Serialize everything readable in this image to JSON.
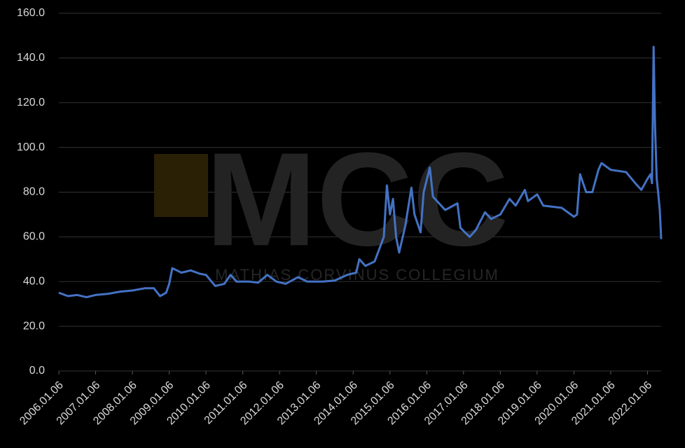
{
  "chart_data": {
    "type": "line",
    "watermark": {
      "logo": "MCC",
      "text": "MATHIAS CORVINUS COLLEGIUM"
    },
    "x": [
      "2006.01.06",
      "2006.04.06",
      "2006.07.06",
      "2006.10.06",
      "2007.01.06",
      "2007.05.06",
      "2007.09.06",
      "2008.01.06",
      "2008.05.06",
      "2008.08.06",
      "2008.10.06",
      "2008.12.06",
      "2009.01.06",
      "2009.02.06",
      "2009.05.06",
      "2009.08.06",
      "2009.11.06",
      "2010.01.06",
      "2010.04.06",
      "2010.07.06",
      "2010.09.06",
      "2010.11.06",
      "2011.03.06",
      "2011.06.06",
      "2011.09.06",
      "2011.12.06",
      "2012.03.06",
      "2012.07.06",
      "2012.10.06",
      "2013.03.06",
      "2013.07.06",
      "2013.11.06",
      "2014.02.06",
      "2014.03.06",
      "2014.05.06",
      "2014.08.06",
      "2014.11.06",
      "2014.12.06",
      "2015.01.06",
      "2015.02.06",
      "2015.03.06",
      "2015.04.06",
      "2015.06.06",
      "2015.08.06",
      "2015.09.06",
      "2015.11.06",
      "2015.12.06",
      "2016.02.06",
      "2016.03.06",
      "2016.07.06",
      "2016.11.06",
      "2016.12.06",
      "2017.03.06",
      "2017.05.06",
      "2017.08.06",
      "2017.10.06",
      "2018.01.06",
      "2018.04.06",
      "2018.06.06",
      "2018.09.06",
      "2018.10.06",
      "2019.01.06",
      "2019.03.06",
      "2019.09.06",
      "2020.01.06",
      "2020.02.06",
      "2020.03.06",
      "2020.05.06",
      "2020.07.06",
      "2020.09.06",
      "2020.10.06",
      "2021.01.06",
      "2021.06.06",
      "2021.09.06",
      "2021.11.06",
      "2022.01.06",
      "2022.02.06",
      "2022.02.20",
      "2022.03.06",
      "2022.03.20",
      "2022.04.06",
      "2022.04.20",
      "2022.05.06",
      "2022.05.20"
    ],
    "series": [
      {
        "color": "#4472c4",
        "values": [
          35,
          33.5,
          34,
          33,
          34,
          34.5,
          35.5,
          36,
          37,
          37,
          33.5,
          35,
          39,
          46,
          44,
          45,
          43.5,
          43,
          38,
          39,
          43,
          40,
          40,
          39.5,
          43,
          40,
          39,
          42,
          40,
          40,
          40.5,
          43,
          44,
          50,
          47,
          49,
          60,
          83,
          70,
          77,
          60,
          53,
          65,
          82,
          70,
          62,
          80,
          91,
          78,
          72,
          75,
          64,
          60,
          63,
          71,
          68,
          70,
          77,
          74,
          81,
          76,
          79,
          74,
          73,
          69,
          70,
          88,
          80,
          80,
          90,
          93,
          90,
          89,
          84,
          81,
          86,
          88,
          84,
          145,
          110,
          86,
          80,
          72,
          59
        ]
      }
    ],
    "xlim": [
      "2006.01.06",
      "2022.05.20"
    ],
    "xticks": [
      "2006.01.06",
      "2007.01.06",
      "2008.01.06",
      "2009.01.06",
      "2010.01.06",
      "2011.01.06",
      "2012.01.06",
      "2013.01.06",
      "2014.01.06",
      "2015.01.06",
      "2016.01.06",
      "2017.01.06",
      "2018.01.06",
      "2019.01.06",
      "2020.01.06",
      "2021.01.06",
      "2022.01.06"
    ],
    "ylim": [
      0,
      160
    ],
    "yticks": [
      {
        "value": 0,
        "label": "0.0"
      },
      {
        "value": 20,
        "label": "20.0"
      },
      {
        "value": 40,
        "label": "40.0"
      },
      {
        "value": 60,
        "label": "60.0"
      },
      {
        "value": 80,
        "label": "80.0"
      },
      {
        "value": 100,
        "label": "100.0"
      },
      {
        "value": 120,
        "label": "120.0"
      },
      {
        "value": 140,
        "label": "140.0"
      },
      {
        "value": 160,
        "label": "160.0"
      }
    ],
    "grid": true
  }
}
